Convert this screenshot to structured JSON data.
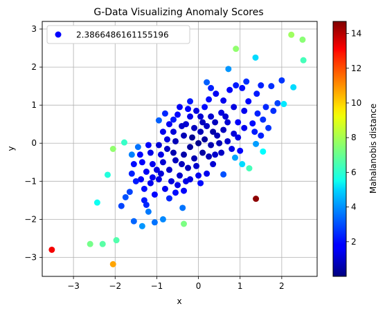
{
  "chart_data": {
    "type": "scatter",
    "title": "G-Data Visualizing Anomaly Scores",
    "xlabel": "x",
    "ylabel": "y",
    "xlim": [
      -3.75,
      2.85
    ],
    "ylim": [
      -3.5,
      3.2
    ],
    "xticks": [
      -3,
      -2,
      -1,
      0,
      1,
      2
    ],
    "yticks": [
      -3,
      -2,
      -1,
      0,
      1,
      2,
      3
    ],
    "grid": true,
    "legend": {
      "placement": "top-left",
      "label": "2.3866486161155196",
      "marker_color": "#0000ff"
    },
    "colorbar": {
      "label": "Mahalanobis distance",
      "min": 0.0,
      "max": 14.7,
      "ticks": [
        2,
        4,
        6,
        8,
        10,
        12,
        14
      ],
      "colormap": "jet"
    },
    "points": [
      {
        "x": -3.52,
        "y": -2.8,
        "c": 13.0
      },
      {
        "x": -2.05,
        "y": -3.18,
        "c": 10.5
      },
      {
        "x": 1.38,
        "y": -1.46,
        "c": 14.5
      },
      {
        "x": 2.23,
        "y": 2.85,
        "c": 7.8
      },
      {
        "x": 2.5,
        "y": 2.72,
        "c": 7.5
      },
      {
        "x": 0.9,
        "y": 2.48,
        "c": 7.6
      },
      {
        "x": 2.52,
        "y": 2.18,
        "c": 6.5
      },
      {
        "x": 1.37,
        "y": 2.25,
        "c": 5.0
      },
      {
        "x": 0.72,
        "y": 1.95,
        "c": 4.0
      },
      {
        "x": -2.6,
        "y": -2.65,
        "c": 7.2
      },
      {
        "x": -2.3,
        "y": -2.65,
        "c": 6.8
      },
      {
        "x": -1.97,
        "y": -2.55,
        "c": 6.7
      },
      {
        "x": -0.35,
        "y": -2.12,
        "c": 7.3
      },
      {
        "x": -2.05,
        "y": -0.15,
        "c": 7.6
      },
      {
        "x": -1.78,
        "y": 0.02,
        "c": 6.3
      },
      {
        "x": -2.18,
        "y": -0.83,
        "c": 6.0
      },
      {
        "x": -2.43,
        "y": -1.56,
        "c": 5.7
      },
      {
        "x": 1.22,
        "y": -0.66,
        "c": 6.5
      },
      {
        "x": 1.55,
        "y": -0.22,
        "c": 5.5
      },
      {
        "x": 2.05,
        "y": 1.03,
        "c": 5.2
      },
      {
        "x": 2.28,
        "y": 1.47,
        "c": 5.0
      },
      {
        "x": 1.05,
        "y": -0.55,
        "c": 5.0
      },
      {
        "x": 0.88,
        "y": -0.38,
        "c": 4.2
      },
      {
        "x": 1.38,
        "y": -0.02,
        "c": 4.1
      },
      {
        "x": -1.35,
        "y": -2.18,
        "c": 4.0
      },
      {
        "x": -0.85,
        "y": -2.0,
        "c": 3.8
      },
      {
        "x": -1.05,
        "y": -2.08,
        "c": 3.5
      },
      {
        "x": -1.55,
        "y": -2.05,
        "c": 3.3
      },
      {
        "x": -1.6,
        "y": -0.3,
        "c": 3.7
      },
      {
        "x": -0.38,
        "y": -1.7,
        "c": 3.5
      },
      {
        "x": -1.2,
        "y": -1.8,
        "c": 3.6
      },
      {
        "x": 0.6,
        "y": -0.82,
        "c": 3.0
      },
      {
        "x": -1.45,
        "y": -0.1,
        "c": 3.5
      },
      {
        "x": 0.2,
        "y": 1.6,
        "c": 3.2
      },
      {
        "x": -0.95,
        "y": 0.6,
        "c": 3.2
      },
      {
        "x": -1.75,
        "y": -1.42,
        "c": 3.0
      },
      {
        "x": -1.85,
        "y": -1.65,
        "c": 2.8
      },
      {
        "x": -1.65,
        "y": -1.28,
        "c": 2.8
      },
      {
        "x": 1.9,
        "y": 1.05,
        "c": 2.8
      },
      {
        "x": 2.0,
        "y": 1.65,
        "c": 2.6
      },
      {
        "x": 1.75,
        "y": 1.5,
        "c": 2.5
      },
      {
        "x": -0.8,
        "y": 0.78,
        "c": 2.4
      },
      {
        "x": -0.6,
        "y": 0.62,
        "c": 2.2
      },
      {
        "x": 0.3,
        "y": 1.45,
        "c": 2.3
      },
      {
        "x": 0.15,
        "y": 0.95,
        "c": 2.0
      },
      {
        "x": 0.9,
        "y": 1.52,
        "c": 2.2
      },
      {
        "x": 1.15,
        "y": 1.62,
        "c": 2.5
      },
      {
        "x": 1.05,
        "y": 1.45,
        "c": 2.0
      },
      {
        "x": 1.5,
        "y": 1.52,
        "c": 2.3
      },
      {
        "x": 1.42,
        "y": 0.78,
        "c": 2.3
      },
      {
        "x": 1.62,
        "y": 0.95,
        "c": 2.4
      },
      {
        "x": 1.55,
        "y": 0.62,
        "c": 2.5
      },
      {
        "x": 1.35,
        "y": 0.3,
        "c": 2.2
      },
      {
        "x": 1.68,
        "y": 0.4,
        "c": 2.6
      },
      {
        "x": 1.5,
        "y": 0.2,
        "c": 2.3
      },
      {
        "x": 1.3,
        "y": 0.52,
        "c": 2.0
      },
      {
        "x": 0.95,
        "y": 0.55,
        "c": 1.8
      },
      {
        "x": 0.6,
        "y": 1.12,
        "c": 1.6
      },
      {
        "x": 0.75,
        "y": 1.4,
        "c": 1.8
      },
      {
        "x": 0.42,
        "y": 1.3,
        "c": 1.7
      },
      {
        "x": 0.55,
        "y": 0.8,
        "c": 1.4
      },
      {
        "x": 0.3,
        "y": 0.7,
        "c": 1.2
      },
      {
        "x": 0.2,
        "y": 0.45,
        "c": 1.0
      },
      {
        "x": 0.05,
        "y": 0.3,
        "c": 0.8
      },
      {
        "x": -0.1,
        "y": 0.4,
        "c": 0.9
      },
      {
        "x": -0.3,
        "y": 0.5,
        "c": 1.2
      },
      {
        "x": -0.2,
        "y": 0.7,
        "c": 1.5
      },
      {
        "x": -0.45,
        "y": 0.95,
        "c": 1.7
      },
      {
        "x": -0.6,
        "y": 0.3,
        "c": 1.3
      },
      {
        "x": -0.75,
        "y": 0.1,
        "c": 1.4
      },
      {
        "x": -0.9,
        "y": -0.3,
        "c": 1.5
      },
      {
        "x": -1.1,
        "y": -0.55,
        "c": 1.6
      },
      {
        "x": -1.25,
        "y": -0.75,
        "c": 1.7
      },
      {
        "x": -1.38,
        "y": -0.95,
        "c": 1.8
      },
      {
        "x": -1.15,
        "y": -1.05,
        "c": 1.6
      },
      {
        "x": -0.95,
        "y": -0.95,
        "c": 1.4
      },
      {
        "x": -0.7,
        "y": -0.7,
        "c": 1.1
      },
      {
        "x": -0.55,
        "y": -0.45,
        "c": 0.9
      },
      {
        "x": -0.35,
        "y": -0.3,
        "c": 0.6
      },
      {
        "x": -0.2,
        "y": -0.1,
        "c": 0.4
      },
      {
        "x": 0.0,
        "y": 0.0,
        "c": 0.2
      },
      {
        "x": 0.15,
        "y": 0.1,
        "c": 0.4
      },
      {
        "x": 0.3,
        "y": -0.05,
        "c": 0.7
      },
      {
        "x": 0.45,
        "y": 0.2,
        "c": 0.8
      },
      {
        "x": -0.1,
        "y": -0.4,
        "c": 0.7
      },
      {
        "x": -0.25,
        "y": -0.65,
        "c": 0.9
      },
      {
        "x": -0.45,
        "y": -0.85,
        "c": 1.1
      },
      {
        "x": -0.65,
        "y": -1.0,
        "c": 1.3
      },
      {
        "x": -0.8,
        "y": -1.2,
        "c": 1.6
      },
      {
        "x": -1.05,
        "y": -1.35,
        "c": 1.9
      },
      {
        "x": -1.3,
        "y": -1.5,
        "c": 2.2
      },
      {
        "x": -1.25,
        "y": -1.62,
        "c": 2.4
      },
      {
        "x": -0.5,
        "y": -1.1,
        "c": 1.5
      },
      {
        "x": -0.35,
        "y": -1.25,
        "c": 1.8
      },
      {
        "x": -0.2,
        "y": -0.95,
        "c": 1.4
      },
      {
        "x": 0.05,
        "y": -1.05,
        "c": 2.0
      },
      {
        "x": 0.2,
        "y": -0.8,
        "c": 1.6
      },
      {
        "x": 0.35,
        "y": -0.55,
        "c": 1.2
      },
      {
        "x": 0.55,
        "y": -0.25,
        "c": 1.0
      },
      {
        "x": 0.7,
        "y": 0.05,
        "c": 1.1
      },
      {
        "x": 0.85,
        "y": 0.25,
        "c": 1.3
      },
      {
        "x": 0.7,
        "y": 0.55,
        "c": 1.2
      },
      {
        "x": 0.4,
        "y": 0.55,
        "c": 0.9
      },
      {
        "x": 0.05,
        "y": 0.7,
        "c": 1.2
      },
      {
        "x": -0.35,
        "y": 0.2,
        "c": 0.8
      },
      {
        "x": -0.55,
        "y": 0.05,
        "c": 0.8
      },
      {
        "x": -0.75,
        "y": -0.15,
        "c": 1.0
      },
      {
        "x": -0.95,
        "y": -0.05,
        "c": 1.2
      },
      {
        "x": -1.15,
        "y": -0.25,
        "c": 1.5
      },
      {
        "x": -1.35,
        "y": -0.5,
        "c": 1.8
      },
      {
        "x": -1.55,
        "y": -0.55,
        "c": 2.0
      },
      {
        "x": -1.4,
        "y": -0.3,
        "c": 1.9
      },
      {
        "x": -1.2,
        "y": -0.05,
        "c": 1.8
      },
      {
        "x": -0.85,
        "y": 0.3,
        "c": 1.6
      },
      {
        "x": -0.7,
        "y": 0.5,
        "c": 1.7
      },
      {
        "x": -0.5,
        "y": 0.75,
        "c": 1.9
      },
      {
        "x": -0.25,
        "y": 0.9,
        "c": 1.9
      },
      {
        "x": 0.1,
        "y": -0.25,
        "c": 0.5
      },
      {
        "x": 0.25,
        "y": -0.35,
        "c": 0.8
      },
      {
        "x": -0.05,
        "y": -0.6,
        "c": 1.1
      },
      {
        "x": -0.4,
        "y": -0.55,
        "c": 0.9
      },
      {
        "x": -0.6,
        "y": -0.25,
        "c": 0.7
      },
      {
        "x": -0.15,
        "y": 0.15,
        "c": 0.3
      },
      {
        "x": 0.35,
        "y": 0.3,
        "c": 0.6
      },
      {
        "x": 0.6,
        "y": 0.35,
        "c": 0.9
      },
      {
        "x": 0.5,
        "y": 0.0,
        "c": 0.8
      },
      {
        "x": -1.0,
        "y": -0.7,
        "c": 1.4
      },
      {
        "x": -1.1,
        "y": -0.9,
        "c": 1.6
      },
      {
        "x": -0.85,
        "y": -0.5,
        "c": 1.2
      },
      {
        "x": 0.0,
        "y": -0.85,
        "c": 1.6
      },
      {
        "x": -0.3,
        "y": -1.0,
        "c": 1.5
      },
      {
        "x": 0.1,
        "y": 0.55,
        "c": 0.9
      },
      {
        "x": 1.1,
        "y": 0.85,
        "c": 1.6
      },
      {
        "x": 1.2,
        "y": 1.1,
        "c": 1.9
      },
      {
        "x": 0.85,
        "y": 0.95,
        "c": 1.4
      },
      {
        "x": 0.95,
        "y": 0.15,
        "c": 1.5
      },
      {
        "x": 1.1,
        "y": 0.4,
        "c": 1.6
      },
      {
        "x": 0.8,
        "y": -0.15,
        "c": 1.5
      },
      {
        "x": 1.0,
        "y": -0.2,
        "c": 1.9
      },
      {
        "x": 0.4,
        "y": -0.3,
        "c": 1.1
      },
      {
        "x": -0.55,
        "y": -1.3,
        "c": 2.0
      },
      {
        "x": -0.7,
        "y": -1.45,
        "c": 2.4
      },
      {
        "x": -1.6,
        "y": -0.8,
        "c": 2.3
      },
      {
        "x": -1.5,
        "y": -1.0,
        "c": 2.2
      },
      {
        "x": -0.2,
        "y": 1.1,
        "c": 2.2
      },
      {
        "x": 0.25,
        "y": 1.15,
        "c": 2.0
      },
      {
        "x": 1.4,
        "y": 1.3,
        "c": 2.2
      },
      {
        "x": 1.8,
        "y": 0.85,
        "c": 2.5
      },
      {
        "x": -0.4,
        "y": 0.45,
        "c": 1.1
      },
      {
        "x": -0.05,
        "y": 0.85,
        "c": 1.4
      },
      {
        "x": 0.65,
        "y": 0.7,
        "c": 1.2
      },
      {
        "x": -1.3,
        "y": -1.2,
        "c": 2.0
      },
      {
        "x": -0.9,
        "y": -0.8,
        "c": 1.3
      }
    ]
  }
}
